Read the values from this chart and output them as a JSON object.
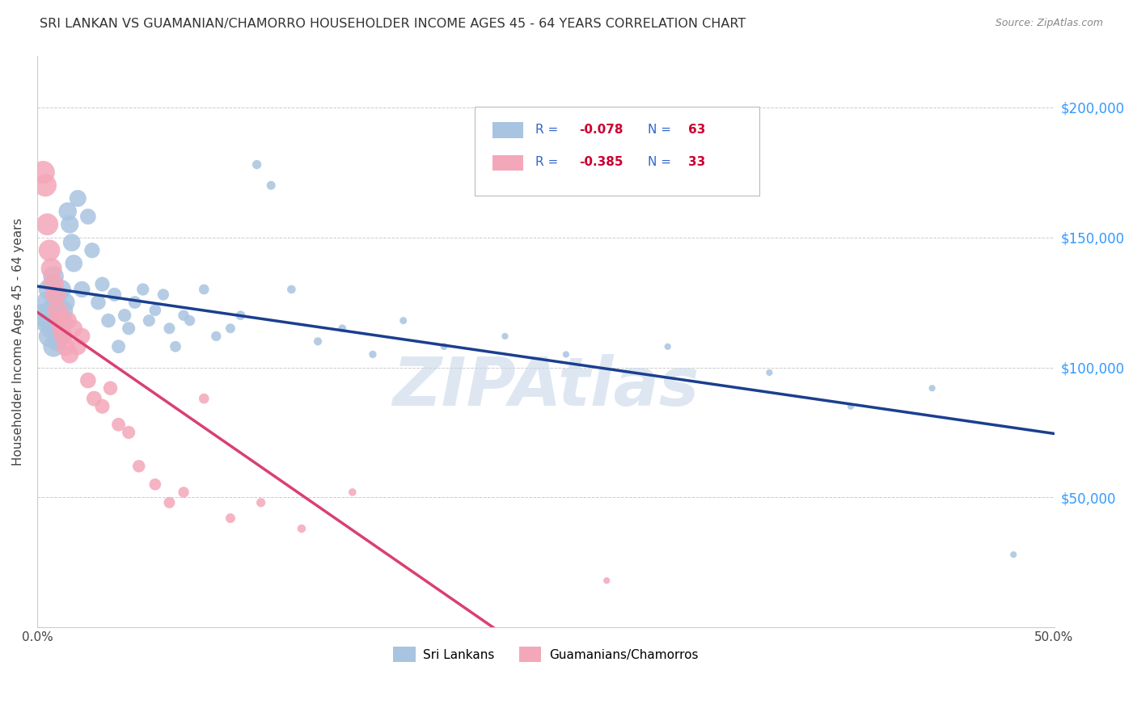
{
  "title": "SRI LANKAN VS GUAMANIAN/CHAMORRO HOUSEHOLDER INCOME AGES 45 - 64 YEARS CORRELATION CHART",
  "source": "Source: ZipAtlas.com",
  "ylabel": "Householder Income Ages 45 - 64 years",
  "ytick_labels": [
    "$50,000",
    "$100,000",
    "$150,000",
    "$200,000"
  ],
  "ytick_values": [
    50000,
    100000,
    150000,
    200000
  ],
  "ymin": 0,
  "ymax": 220000,
  "xmin": 0.0,
  "xmax": 0.5,
  "sri_lanka_R": -0.078,
  "sri_lanka_N": 63,
  "guam_R": -0.385,
  "guam_N": 33,
  "sri_lanka_color": "#a8c4e0",
  "guam_color": "#f4a7b9",
  "sri_lanka_line_color": "#1a3f8f",
  "guam_line_color": "#d94070",
  "legend_label_1": "Sri Lankans",
  "legend_label_2": "Guamanians/Chamorros",
  "sri_lanka_x": [
    0.003,
    0.004,
    0.005,
    0.006,
    0.006,
    0.007,
    0.007,
    0.008,
    0.008,
    0.009,
    0.009,
    0.01,
    0.01,
    0.011,
    0.011,
    0.012,
    0.012,
    0.013,
    0.013,
    0.014,
    0.015,
    0.016,
    0.017,
    0.018,
    0.02,
    0.022,
    0.025,
    0.027,
    0.03,
    0.032,
    0.035,
    0.038,
    0.04,
    0.043,
    0.045,
    0.048,
    0.052,
    0.055,
    0.058,
    0.062,
    0.065,
    0.068,
    0.072,
    0.075,
    0.082,
    0.088,
    0.095,
    0.1,
    0.108,
    0.115,
    0.125,
    0.138,
    0.15,
    0.165,
    0.18,
    0.2,
    0.23,
    0.26,
    0.31,
    0.36,
    0.4,
    0.44,
    0.48
  ],
  "sri_lanka_y": [
    120000,
    118000,
    125000,
    112000,
    130000,
    115000,
    122000,
    108000,
    135000,
    118000,
    125000,
    110000,
    128000,
    120000,
    115000,
    130000,
    112000,
    122000,
    118000,
    125000,
    160000,
    155000,
    148000,
    140000,
    165000,
    130000,
    158000,
    145000,
    125000,
    132000,
    118000,
    128000,
    108000,
    120000,
    115000,
    125000,
    130000,
    118000,
    122000,
    128000,
    115000,
    108000,
    120000,
    118000,
    130000,
    112000,
    115000,
    120000,
    178000,
    170000,
    130000,
    110000,
    115000,
    105000,
    118000,
    108000,
    112000,
    105000,
    108000,
    98000,
    85000,
    92000,
    28000
  ],
  "guam_x": [
    0.003,
    0.004,
    0.005,
    0.006,
    0.007,
    0.008,
    0.009,
    0.01,
    0.011,
    0.012,
    0.013,
    0.014,
    0.015,
    0.016,
    0.018,
    0.02,
    0.022,
    0.025,
    0.028,
    0.032,
    0.036,
    0.04,
    0.045,
    0.05,
    0.058,
    0.065,
    0.072,
    0.082,
    0.095,
    0.11,
    0.13,
    0.155,
    0.28
  ],
  "guam_y": [
    175000,
    170000,
    155000,
    145000,
    138000,
    132000,
    128000,
    122000,
    118000,
    115000,
    112000,
    108000,
    118000,
    105000,
    115000,
    108000,
    112000,
    95000,
    88000,
    85000,
    92000,
    78000,
    75000,
    62000,
    55000,
    48000,
    52000,
    88000,
    42000,
    48000,
    38000,
    52000,
    18000
  ],
  "watermark_text": "ZIPAtlas",
  "watermark_color": "#c8d8e8",
  "background_color": "#ffffff",
  "grid_color": "#cccccc",
  "legend_text_color": "#3366cc",
  "legend_value_color": "#cc0033"
}
